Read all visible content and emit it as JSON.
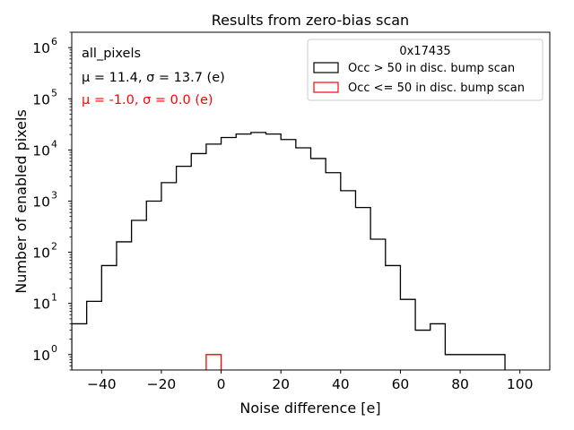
{
  "chart_data": {
    "type": "histogram",
    "title": "Results from zero-bias scan",
    "xlabel": "Noise difference [e]",
    "ylabel": "Number of enabled pixels",
    "xlim": [
      -50,
      110
    ],
    "ylim": [
      0.5,
      2000000
    ],
    "yscale": "log",
    "x_ticks": [
      -40,
      -20,
      0,
      20,
      40,
      60,
      80,
      100
    ],
    "x_tick_labels": [
      "−40",
      "−20",
      "0",
      "20",
      "40",
      "60",
      "80",
      "100"
    ],
    "y_ticks": [
      1,
      10,
      100,
      1000,
      10000,
      100000,
      1000000
    ],
    "y_tick_bases": [
      "10",
      "10",
      "10",
      "10",
      "10",
      "10",
      "10"
    ],
    "y_tick_exponents": [
      "0",
      "1",
      "2",
      "3",
      "4",
      "5",
      "6"
    ],
    "series": [
      {
        "name": "Occ > 50 in disc. bump scan",
        "color": "#000000",
        "bin_edges": [
          -50,
          -45,
          -40,
          -35,
          -30,
          -25,
          -20,
          -15,
          -10,
          -5,
          0,
          5,
          10,
          15,
          20,
          25,
          30,
          35,
          40,
          45,
          50,
          55,
          60,
          65,
          70,
          75,
          80,
          85,
          90,
          95
        ],
        "counts": [
          4,
          11,
          55,
          160,
          420,
          1000,
          2300,
          4800,
          8500,
          13000,
          17500,
          20500,
          22000,
          20500,
          16000,
          11000,
          6800,
          3600,
          1600,
          750,
          180,
          55,
          12,
          3,
          4,
          1,
          1,
          1,
          1
        ]
      },
      {
        "name": "Occ <= 50 in disc. bump scan",
        "color": "#ff0000",
        "bin_edges": [
          -5,
          0
        ],
        "counts": [
          1
        ]
      }
    ],
    "annotations": [
      {
        "text": "all_pixels",
        "color": "#000000"
      },
      {
        "text": "μ = 11.4, σ = 13.7 (e)",
        "color": "#000000"
      },
      {
        "text": "μ = -1.0, σ = 0.0 (e)",
        "color": "#ff0000"
      }
    ],
    "legend": {
      "title": "0x17435",
      "position": "top-right"
    }
  }
}
